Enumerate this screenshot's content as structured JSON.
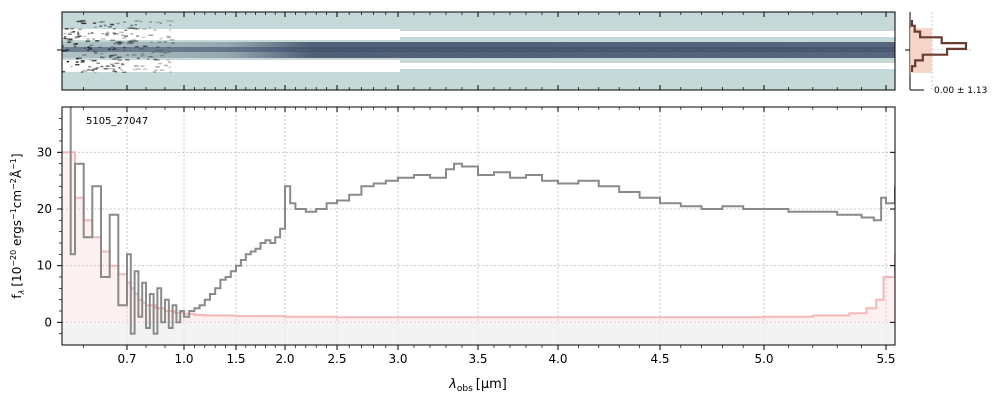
{
  "object_id": "5105_27047",
  "colors": {
    "spectrum": "#8a8a8a",
    "error": "#f4b8b8",
    "error_fill": "#fad4d4",
    "zero_band": "#eeeeee",
    "grid": "#bdbdbd",
    "twod_background": "#c5d9d8",
    "twod_gap": "#ffffff",
    "twod_trace": "#3c4a66",
    "profile_line": "#6b3a2e",
    "profile_fill": "#f6cbbd"
  },
  "chart_data": [
    {
      "type": "heatmap",
      "name": "2D spectrum",
      "description_axis": "wavelength (same as 1D panel)",
      "trace_row": "centre",
      "rows_shown": "three bands: upper band, central trace, lower band"
    },
    {
      "type": "line",
      "name": "spatial profile",
      "label": "0.00 ± 1.13",
      "profile": [
        0.0,
        0.05,
        0.15,
        0.55,
        1.0,
        0.65,
        0.2,
        0.06,
        0.0
      ]
    },
    {
      "type": "line",
      "title": "",
      "xlabel": "λ_obs [μm]",
      "xlabel_main": "λ",
      "xlabel_sub": "obs",
      "xlabel_unit": "[μm]",
      "ylabel": "f_λ [10^-20 ergs^-1cm^-2Å^-1]",
      "ylabel_parts": {
        "f": "f",
        "lam": "λ",
        "open": "[10",
        "exp1": "−20",
        "mid1": " ergs",
        "exp2": "−1",
        "mid2": "cm",
        "exp3": "−2",
        "mid3": "Å",
        "exp4": "−1",
        "close": "]"
      },
      "x_scale": "compressed (nonlinear) wavelength axis",
      "xlim": [
        0.55,
        5.52
      ],
      "ylim": [
        -4,
        38
      ],
      "xticks": [
        {
          "value": 0.7,
          "label": "0.7"
        },
        {
          "value": 1.0,
          "label": "1.0"
        },
        {
          "value": 1.5,
          "label": "1.5"
        },
        {
          "value": 2.0,
          "label": "2.0"
        },
        {
          "value": 2.5,
          "label": "2.5"
        },
        {
          "value": 3.0,
          "label": "3.0"
        },
        {
          "value": 3.5,
          "label": "3.5"
        },
        {
          "value": 4.0,
          "label": "4.0"
        },
        {
          "value": 4.5,
          "label": "4.5"
        },
        {
          "value": 5.0,
          "label": "5.0"
        },
        {
          "value": 5.5,
          "label": "5.5"
        }
      ],
      "yticks": [
        {
          "value": 0,
          "label": "0"
        },
        {
          "value": 10,
          "label": "10"
        },
        {
          "value": 20,
          "label": "20"
        },
        {
          "value": 30,
          "label": "30"
        }
      ],
      "grid": true,
      "series": [
        {
          "role": "flux",
          "style": "step",
          "points": [
            [
              0.55,
              46
            ],
            [
              0.57,
              12
            ],
            [
              0.58,
              28
            ],
            [
              0.6,
              15
            ],
            [
              0.62,
              24
            ],
            [
              0.64,
              8
            ],
            [
              0.66,
              19
            ],
            [
              0.68,
              3
            ],
            [
              0.7,
              12
            ],
            [
              0.72,
              -2
            ],
            [
              0.74,
              9
            ],
            [
              0.76,
              1
            ],
            [
              0.78,
              7
            ],
            [
              0.8,
              -1
            ],
            [
              0.82,
              5
            ],
            [
              0.84,
              -2
            ],
            [
              0.86,
              6
            ],
            [
              0.88,
              0
            ],
            [
              0.9,
              4
            ],
            [
              0.92,
              -1
            ],
            [
              0.94,
              3
            ],
            [
              0.96,
              0
            ],
            [
              0.98,
              2
            ],
            [
              1.0,
              1
            ],
            [
              1.05,
              2
            ],
            [
              1.1,
              2.5
            ],
            [
              1.15,
              3
            ],
            [
              1.2,
              4
            ],
            [
              1.25,
              5
            ],
            [
              1.3,
              6
            ],
            [
              1.35,
              7.5
            ],
            [
              1.4,
              8
            ],
            [
              1.45,
              9
            ],
            [
              1.5,
              10
            ],
            [
              1.55,
              11
            ],
            [
              1.6,
              12
            ],
            [
              1.65,
              12.5
            ],
            [
              1.7,
              13
            ],
            [
              1.75,
              14
            ],
            [
              1.8,
              14.5
            ],
            [
              1.85,
              14
            ],
            [
              1.9,
              15
            ],
            [
              1.95,
              16.5
            ],
            [
              2.0,
              24
            ],
            [
              2.05,
              21
            ],
            [
              2.1,
              20
            ],
            [
              2.2,
              19.5
            ],
            [
              2.3,
              20
            ],
            [
              2.4,
              21
            ],
            [
              2.5,
              21.5
            ],
            [
              2.6,
              22.5
            ],
            [
              2.7,
              24
            ],
            [
              2.8,
              24.5
            ],
            [
              2.9,
              25
            ],
            [
              3.0,
              25.5
            ],
            [
              3.1,
              26
            ],
            [
              3.2,
              25.5
            ],
            [
              3.3,
              27
            ],
            [
              3.35,
              28
            ],
            [
              3.4,
              27.5
            ],
            [
              3.5,
              26
            ],
            [
              3.6,
              26.5
            ],
            [
              3.7,
              25.5
            ],
            [
              3.8,
              26
            ],
            [
              3.9,
              25
            ],
            [
              4.0,
              24.5
            ],
            [
              4.1,
              25
            ],
            [
              4.2,
              24
            ],
            [
              4.3,
              23
            ],
            [
              4.4,
              22
            ],
            [
              4.5,
              21
            ],
            [
              4.6,
              20.5
            ],
            [
              4.7,
              20
            ],
            [
              4.8,
              20.5
            ],
            [
              4.9,
              20
            ],
            [
              5.0,
              20
            ],
            [
              5.1,
              19.5
            ],
            [
              5.2,
              19.5
            ],
            [
              5.3,
              19
            ],
            [
              5.4,
              18.5
            ],
            [
              5.45,
              18
            ],
            [
              5.48,
              22
            ],
            [
              5.5,
              21
            ],
            [
              5.52,
              24
            ]
          ]
        },
        {
          "role": "error",
          "style": "step",
          "points": [
            [
              0.55,
              30
            ],
            [
              0.58,
              22
            ],
            [
              0.6,
              18
            ],
            [
              0.62,
              15
            ],
            [
              0.64,
              12.5
            ],
            [
              0.66,
              10
            ],
            [
              0.68,
              8.5
            ],
            [
              0.7,
              7
            ],
            [
              0.72,
              6
            ],
            [
              0.74,
              5
            ],
            [
              0.76,
              4
            ],
            [
              0.78,
              3.5
            ],
            [
              0.8,
              3
            ],
            [
              0.85,
              2.5
            ],
            [
              0.9,
              2
            ],
            [
              0.95,
              1.7
            ],
            [
              1.0,
              1.5
            ],
            [
              1.1,
              1.3
            ],
            [
              1.2,
              1.2
            ],
            [
              1.5,
              1.1
            ],
            [
              2.0,
              1.0
            ],
            [
              2.5,
              0.9
            ],
            [
              3.0,
              0.9
            ],
            [
              3.5,
              0.9
            ],
            [
              4.0,
              0.9
            ],
            [
              4.5,
              0.9
            ],
            [
              5.0,
              1.0
            ],
            [
              5.2,
              1.2
            ],
            [
              5.35,
              1.6
            ],
            [
              5.42,
              2.5
            ],
            [
              5.46,
              4
            ],
            [
              5.49,
              8
            ],
            [
              5.52,
              12
            ]
          ]
        }
      ]
    }
  ]
}
